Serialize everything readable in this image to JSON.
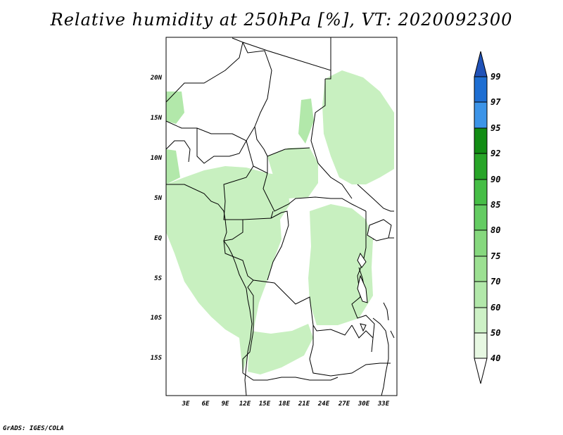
{
  "title": "Relative humidity at 250hPa [%], VT: 2020092300",
  "credit": "GrADS: IGES/COLA",
  "map": {
    "lat_labels": [
      "20N",
      "15N",
      "10N",
      "5N",
      "EQ",
      "5S",
      "10S",
      "15S"
    ],
    "lon_labels": [
      "3E",
      "6E",
      "9E",
      "12E",
      "15E",
      "18E",
      "21E",
      "24E",
      "27E",
      "30E",
      "33E"
    ],
    "humid_color": "#c8f0c0",
    "humid_color_2": "#b2e8aa"
  },
  "colorbar": {
    "labels": [
      "40",
      "50",
      "60",
      "70",
      "75",
      "80",
      "85",
      "90",
      "92",
      "95",
      "97",
      "99"
    ],
    "colors": [
      "#ffffff",
      "#e7f8e2",
      "#cdf1c6",
      "#b2e8aa",
      "#9ce092",
      "#86d87e",
      "#64cc62",
      "#46be46",
      "#28a528",
      "#128c14",
      "#3c94e8",
      "#1e6ed2",
      "#2052b8"
    ]
  }
}
